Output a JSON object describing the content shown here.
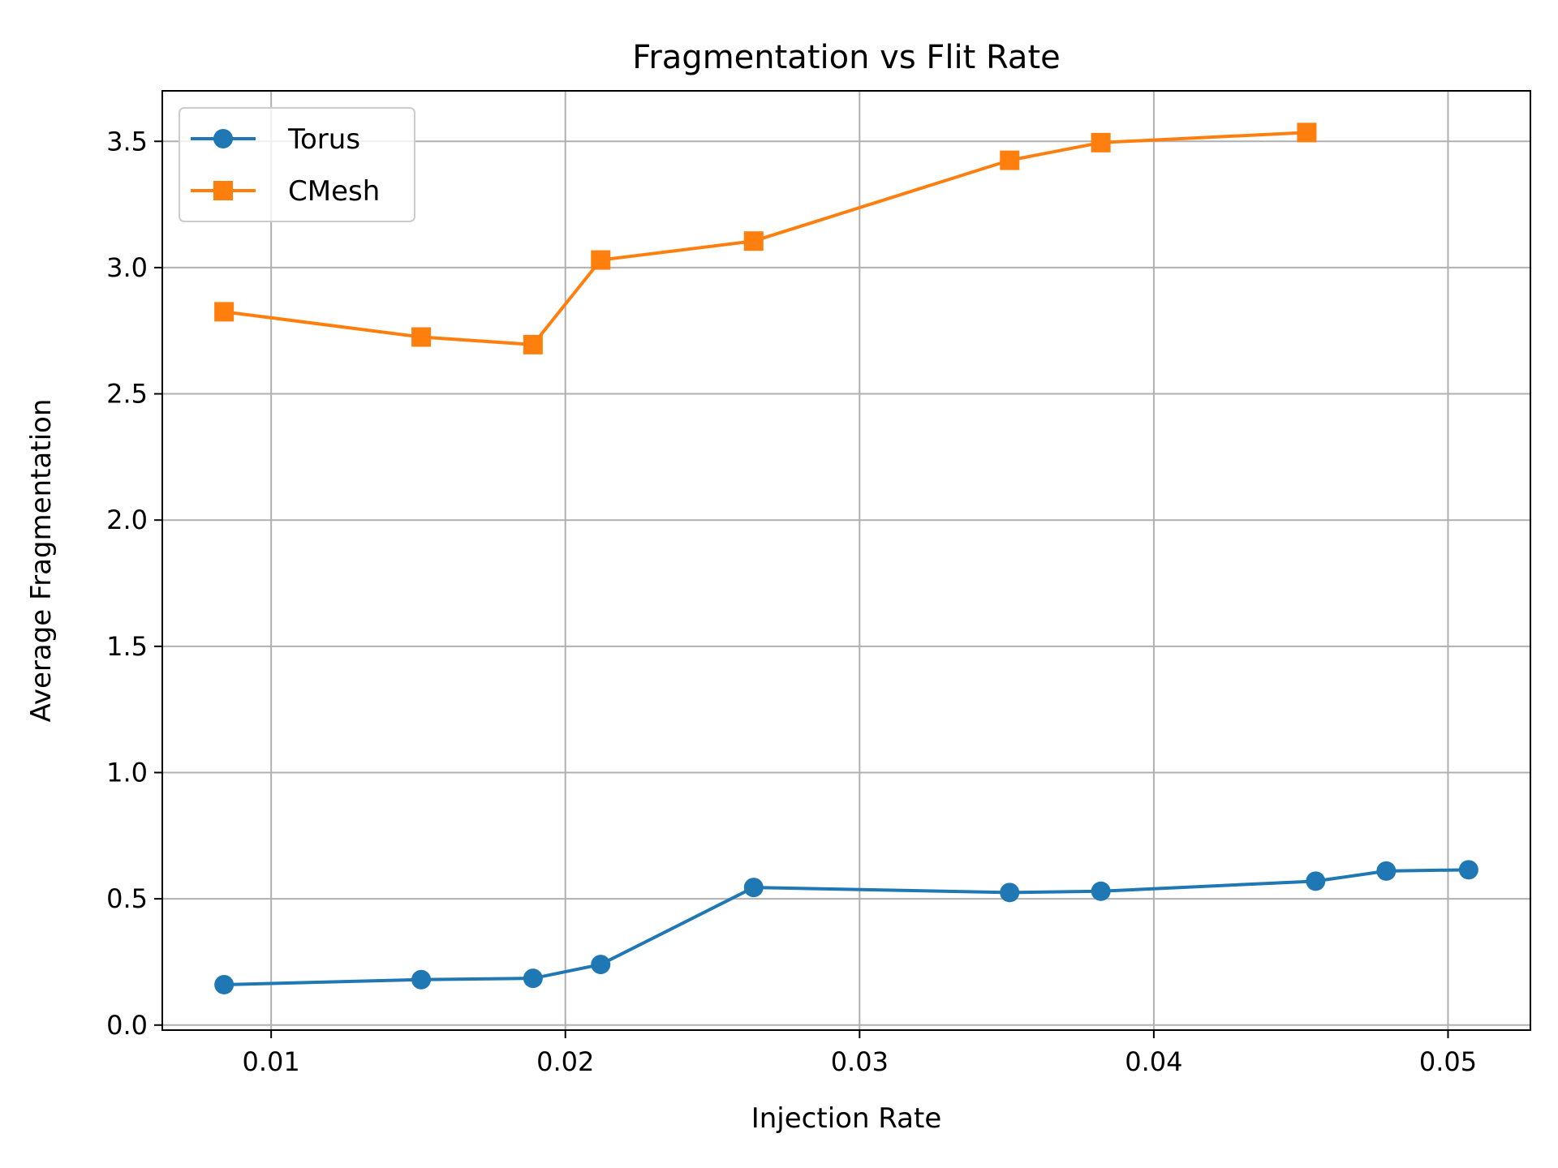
{
  "chart_data": {
    "type": "line",
    "title": "Fragmentation vs Flit Rate",
    "xlabel": "Injection Rate",
    "ylabel": "Average Fragmentation",
    "xlim": [
      0.0063,
      0.0528
    ],
    "ylim": [
      -0.02,
      3.7
    ],
    "xticks": [
      0.01,
      0.02,
      0.03,
      0.04,
      0.05
    ],
    "xtick_labels": [
      "0.01",
      "0.02",
      "0.03",
      "0.04",
      "0.05"
    ],
    "yticks": [
      0.0,
      0.5,
      1.0,
      1.5,
      2.0,
      2.5,
      3.0,
      3.5
    ],
    "ytick_labels": [
      "0.0",
      "0.5",
      "1.0",
      "1.5",
      "2.0",
      "2.5",
      "3.0",
      "3.5"
    ],
    "grid": true,
    "legend_position": "top-left",
    "series": [
      {
        "name": "Torus",
        "marker": "circle",
        "color": "#1f77b4",
        "points": [
          {
            "x": 0.0084,
            "y": 0.16
          },
          {
            "x": 0.0151,
            "y": 0.18
          },
          {
            "x": 0.0189,
            "y": 0.185
          },
          {
            "x": 0.0212,
            "y": 0.24
          },
          {
            "x": 0.0264,
            "y": 0.545
          },
          {
            "x": 0.0351,
            "y": 0.525
          },
          {
            "x": 0.0382,
            "y": 0.53
          },
          {
            "x": 0.0455,
            "y": 0.57
          },
          {
            "x": 0.0479,
            "y": 0.61
          },
          {
            "x": 0.0507,
            "y": 0.615
          }
        ]
      },
      {
        "name": "CMesh",
        "marker": "square",
        "color": "#ff7f0e",
        "points": [
          {
            "x": 0.0084,
            "y": 2.825
          },
          {
            "x": 0.0151,
            "y": 2.725
          },
          {
            "x": 0.0189,
            "y": 2.695
          },
          {
            "x": 0.0212,
            "y": 3.03
          },
          {
            "x": 0.0264,
            "y": 3.105
          },
          {
            "x": 0.0351,
            "y": 3.425
          },
          {
            "x": 0.0382,
            "y": 3.495
          },
          {
            "x": 0.0452,
            "y": 3.535
          }
        ]
      }
    ]
  }
}
